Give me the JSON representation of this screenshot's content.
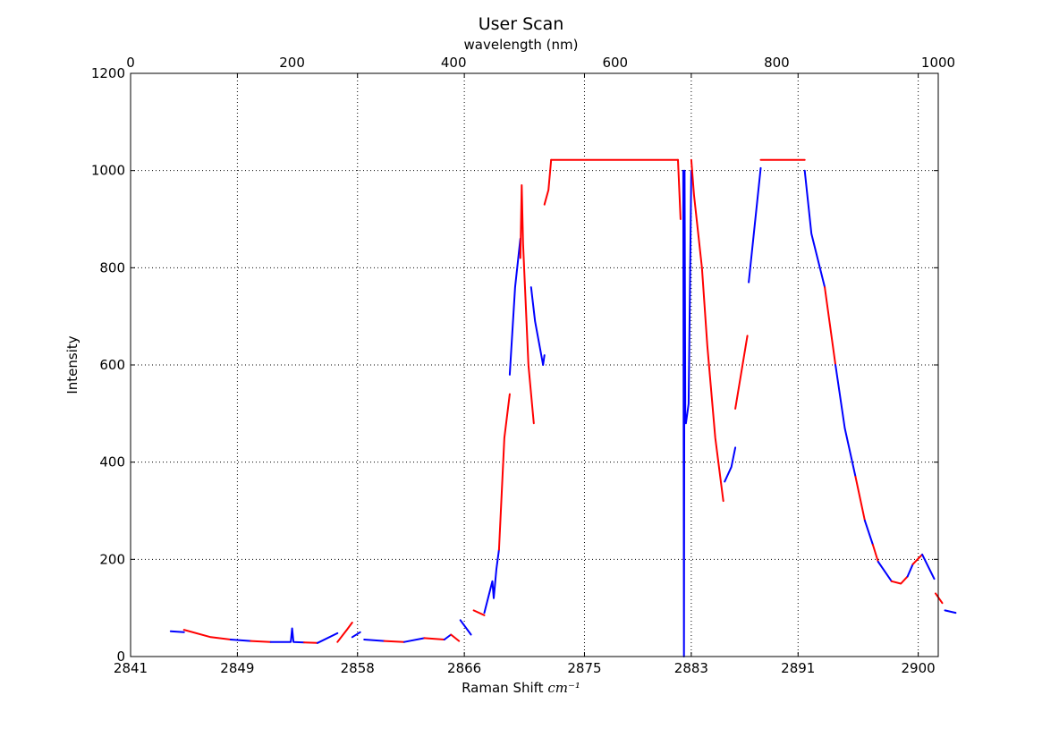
{
  "chart_data": {
    "type": "line",
    "title": "User Scan",
    "xlabel_text": "Raman Shift",
    "xlabel_unit": "cm⁻¹",
    "top_xlabel": "wavelength (nm)",
    "ylabel": "Intensity",
    "grid": true,
    "xlim": [
      2841,
      2901.5
    ],
    "ylim": [
      0,
      1200
    ],
    "x_tick_labels": [
      "2841",
      "2849",
      "2858",
      "2866",
      "2875",
      "2883",
      "2891",
      "2900"
    ],
    "x_tick_values": [
      2841,
      2849,
      2858,
      2866,
      2875,
      2883,
      2891,
      2900
    ],
    "top_xlim": [
      0,
      1000
    ],
    "top_x_ticks": [
      0,
      200,
      400,
      600,
      800,
      1000
    ],
    "y_ticks": [
      0,
      200,
      400,
      600,
      800,
      1000,
      1200
    ],
    "colors": {
      "series_a": "#0000ff",
      "series_b": "#ff0000"
    },
    "segments": [
      {
        "color": "#0000ff",
        "x": [
          2844.0,
          2845.0
        ],
        "y": [
          52,
          50
        ]
      },
      {
        "color": "#ff0000",
        "x": [
          2845.0,
          2847.0,
          2848.5
        ],
        "y": [
          55,
          40,
          35
        ]
      },
      {
        "color": "#0000ff",
        "x": [
          2848.5,
          2850.0
        ],
        "y": [
          35,
          32
        ]
      },
      {
        "color": "#ff0000",
        "x": [
          2850.0,
          2851.5
        ],
        "y": [
          32,
          30
        ]
      },
      {
        "color": "#0000ff",
        "x": [
          2851.5,
          2853.0,
          2853.1,
          2853.2,
          2854.0
        ],
        "y": [
          30,
          30,
          58,
          30,
          29
        ]
      },
      {
        "color": "#ff0000",
        "x": [
          2854.0,
          2855.0
        ],
        "y": [
          29,
          28
        ]
      },
      {
        "color": "#0000ff",
        "x": [
          2855.0,
          2856.5
        ],
        "y": [
          28,
          48
        ]
      },
      {
        "color": "#ff0000",
        "x": [
          2856.5,
          2857.2,
          2857.6
        ],
        "y": [
          30,
          55,
          70
        ]
      },
      {
        "color": "#0000ff",
        "x": [
          2857.6,
          2858.2
        ],
        "y": [
          40,
          50
        ]
      },
      {
        "color": "#0000ff",
        "x": [
          2858.5,
          2860.0
        ],
        "y": [
          35,
          32
        ]
      },
      {
        "color": "#ff0000",
        "x": [
          2860.0,
          2861.5
        ],
        "y": [
          32,
          30
        ]
      },
      {
        "color": "#0000ff",
        "x": [
          2861.5,
          2863.0
        ],
        "y": [
          30,
          38
        ]
      },
      {
        "color": "#ff0000",
        "x": [
          2863.0,
          2864.5
        ],
        "y": [
          38,
          35
        ]
      },
      {
        "color": "#0000ff",
        "x": [
          2864.5,
          2865.0
        ],
        "y": [
          35,
          45
        ]
      },
      {
        "color": "#ff0000",
        "x": [
          2865.0,
          2865.6
        ],
        "y": [
          45,
          32
        ]
      },
      {
        "color": "#0000ff",
        "x": [
          2865.7,
          2866.5
        ],
        "y": [
          75,
          45
        ]
      },
      {
        "color": "#ff0000",
        "x": [
          2866.7,
          2867.5
        ],
        "y": [
          95,
          85
        ]
      },
      {
        "color": "#0000ff",
        "x": [
          2867.5,
          2868.1,
          2868.2,
          2868.4,
          2868.6
        ],
        "y": [
          90,
          155,
          120,
          180,
          220
        ]
      },
      {
        "color": "#ff0000",
        "x": [
          2868.6,
          2869.0,
          2869.4
        ],
        "y": [
          220,
          450,
          540
        ]
      },
      {
        "color": "#0000ff",
        "x": [
          2869.4,
          2869.8,
          2870.2
        ],
        "y": [
          580,
          760,
          860
        ]
      },
      {
        "color": "#ff0000",
        "x": [
          2870.2,
          2870.3,
          2870.4,
          2870.8,
          2871.2
        ],
        "y": [
          820,
          970,
          850,
          600,
          480
        ]
      },
      {
        "color": "#0000ff",
        "x": [
          2871.0,
          2871.3,
          2871.9,
          2872.0
        ],
        "y": [
          760,
          690,
          600,
          620
        ]
      },
      {
        "color": "#ff0000",
        "x": [
          2872.0,
          2872.3,
          2872.5
        ],
        "y": [
          930,
          960,
          1022
        ]
      },
      {
        "color": "#ff0000",
        "x": [
          2872.5,
          2882.0
        ],
        "y": [
          1022,
          1022
        ]
      },
      {
        "color": "#ff0000",
        "x": [
          2882.0,
          2882.2
        ],
        "y": [
          1022,
          900
        ]
      },
      {
        "color": "#0000ff",
        "x": [
          2882.4,
          2882.45,
          2882.5,
          2882.55,
          2882.6,
          2882.8,
          2883.0
        ],
        "y": [
          1000,
          0,
          1000,
          490,
          480,
          520,
          1000
        ]
      },
      {
        "color": "#ff0000",
        "x": [
          2883.0,
          2883.2,
          2883.8,
          2884.2,
          2884.8,
          2885.4
        ],
        "y": [
          1022,
          950,
          800,
          640,
          450,
          320
        ]
      },
      {
        "color": "#0000ff",
        "x": [
          2885.5,
          2886.0,
          2886.3
        ],
        "y": [
          360,
          390,
          430
        ]
      },
      {
        "color": "#ff0000",
        "x": [
          2886.3,
          2887.2
        ],
        "y": [
          510,
          660
        ]
      },
      {
        "color": "#0000ff",
        "x": [
          2887.3,
          2888.2
        ],
        "y": [
          770,
          1005
        ]
      },
      {
        "color": "#ff0000",
        "x": [
          2888.2,
          2891.5
        ],
        "y": [
          1022,
          1022
        ]
      },
      {
        "color": "#0000ff",
        "x": [
          2891.5,
          2892.0,
          2893.0
        ],
        "y": [
          1000,
          870,
          760
        ]
      },
      {
        "color": "#ff0000",
        "x": [
          2893.0,
          2893.8
        ],
        "y": [
          760,
          600
        ]
      },
      {
        "color": "#0000ff",
        "x": [
          2893.8,
          2894.5,
          2895.3
        ],
        "y": [
          600,
          470,
          370
        ]
      },
      {
        "color": "#ff0000",
        "x": [
          2895.3,
          2896.0
        ],
        "y": [
          370,
          280
        ]
      },
      {
        "color": "#0000ff",
        "x": [
          2896.0,
          2896.6
        ],
        "y": [
          280,
          230
        ]
      },
      {
        "color": "#ff0000",
        "x": [
          2896.6,
          2897.0
        ],
        "y": [
          230,
          195
        ]
      },
      {
        "color": "#0000ff",
        "x": [
          2897.0,
          2898.0
        ],
        "y": [
          195,
          155
        ]
      },
      {
        "color": "#ff0000",
        "x": [
          2898.0,
          2898.7,
          2899.2
        ],
        "y": [
          155,
          150,
          165
        ]
      },
      {
        "color": "#0000ff",
        "x": [
          2899.2,
          2899.6
        ],
        "y": [
          165,
          190
        ]
      },
      {
        "color": "#ff0000",
        "x": [
          2899.6,
          2900.3
        ],
        "y": [
          190,
          210
        ]
      },
      {
        "color": "#0000ff",
        "x": [
          2900.3,
          2901.2
        ],
        "y": [
          210,
          160
        ]
      },
      {
        "color": "#ff0000",
        "x": [
          2901.3,
          2901.8
        ],
        "y": [
          130,
          110
        ]
      },
      {
        "color": "#0000ff",
        "x": [
          2902.0,
          2902.8
        ],
        "y": [
          95,
          90
        ]
      }
    ]
  }
}
